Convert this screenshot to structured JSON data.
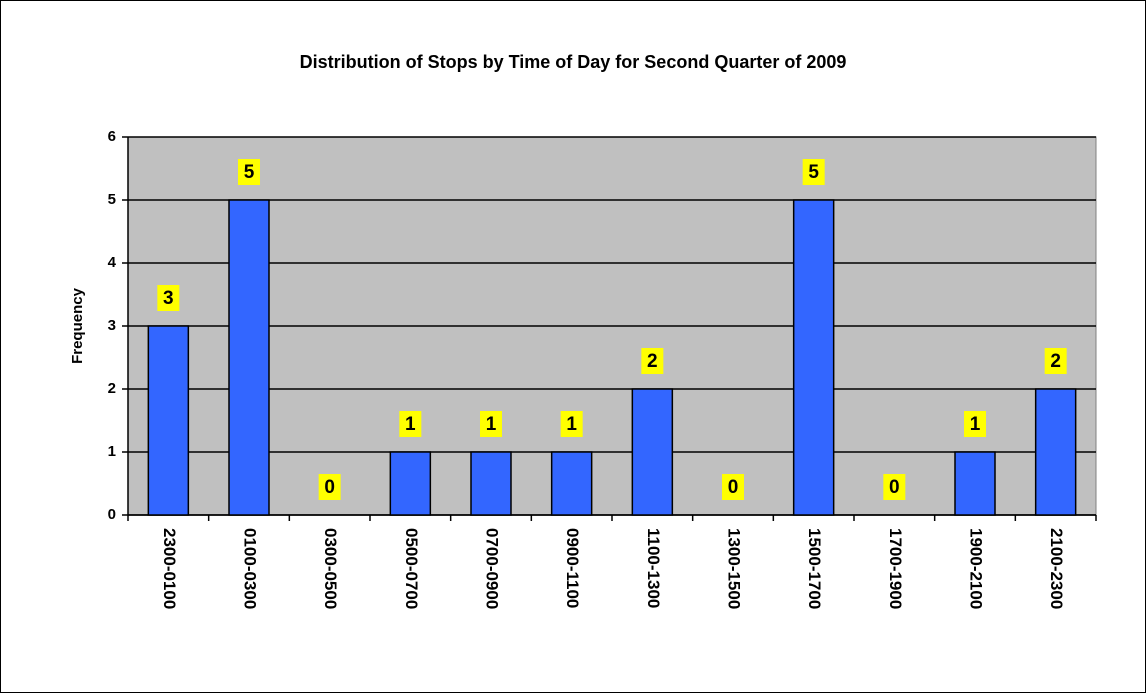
{
  "chart_data": {
    "type": "bar",
    "title": "Distribution of Stops by Time of Day for Second Quarter of 2009",
    "y_label": "Frequency",
    "categories": [
      "2300-0100",
      "0100-0300",
      "0300-0500",
      "0500-0700",
      "0700-0900",
      "0900-1100",
      "1100-1300",
      "1300-1500",
      "1500-1700",
      "1700-1900",
      "1900-2100",
      "2100-2300"
    ],
    "values": [
      3,
      5,
      0,
      1,
      1,
      1,
      2,
      0,
      5,
      0,
      1,
      2
    ],
    "color": "#3366ff",
    "ylim": [
      0,
      6
    ],
    "yticks": [
      0,
      1,
      2,
      3,
      4,
      5,
      6
    ],
    "grid": true
  }
}
